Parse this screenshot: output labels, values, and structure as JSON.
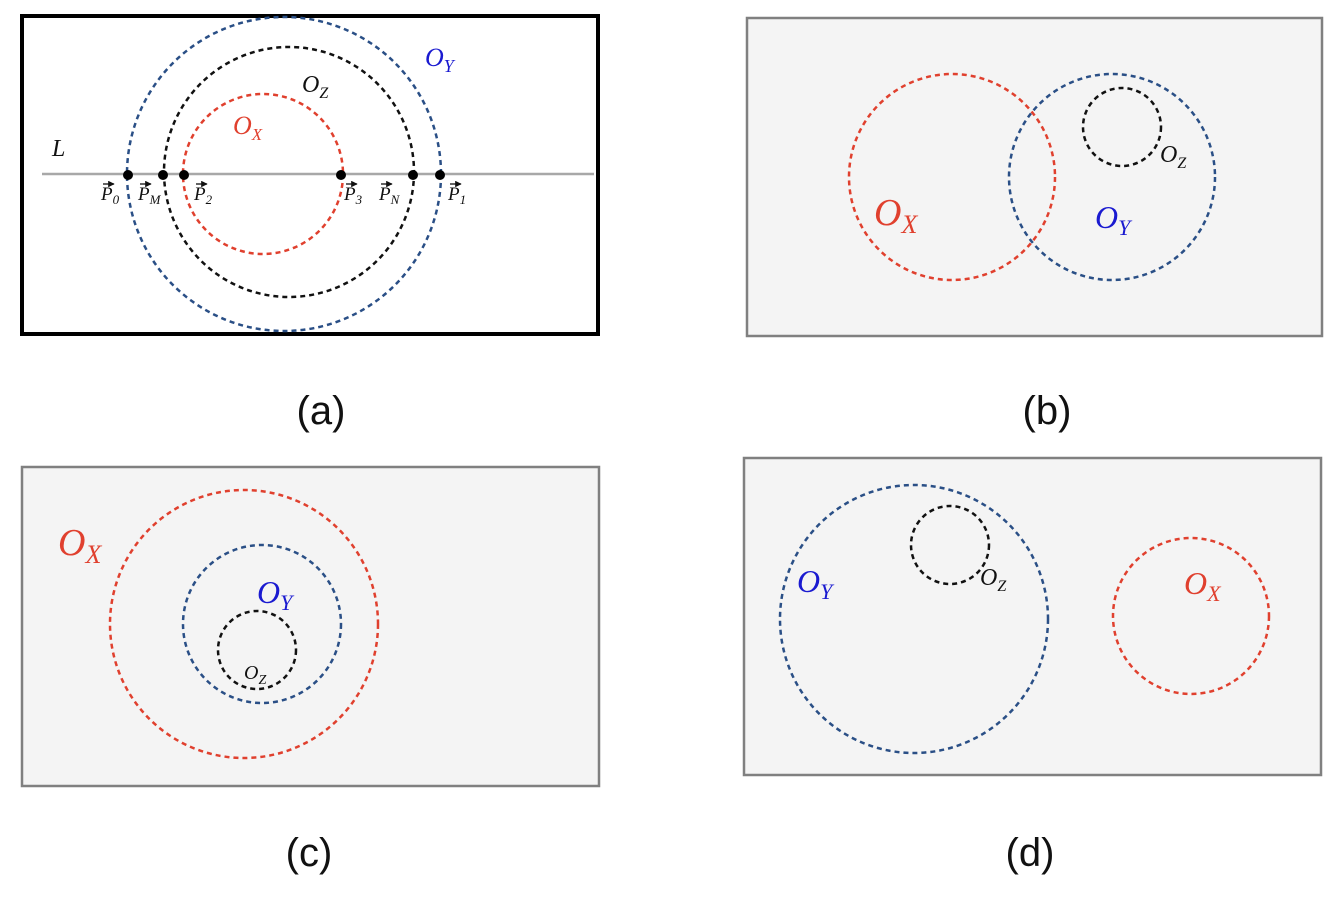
{
  "colors": {
    "red": "#e0402e",
    "blue": "#2a4f86",
    "black": "#111111",
    "label_blue": "#1a1ad0",
    "panel_fill": "#f4f4f4",
    "panel_border": "#808080",
    "line": "#a8a8a8"
  },
  "panels": [
    {
      "caption": "(a)",
      "line_label": "L",
      "circles": [
        {
          "id": "X",
          "letter": "O",
          "sub": "X",
          "color": "red"
        },
        {
          "id": "Y",
          "letter": "O",
          "sub": "Y",
          "color": "blue"
        },
        {
          "id": "Z",
          "letter": "O",
          "sub": "Z",
          "color": "black"
        }
      ],
      "points": [
        {
          "name": "P",
          "sub": "0"
        },
        {
          "name": "P",
          "sub": "M"
        },
        {
          "name": "P",
          "sub": "2"
        },
        {
          "name": "P",
          "sub": "3"
        },
        {
          "name": "P",
          "sub": "N"
        },
        {
          "name": "P",
          "sub": "1"
        }
      ]
    },
    {
      "caption": "(b)",
      "circles": [
        {
          "id": "X",
          "letter": "O",
          "sub": "X",
          "color": "red"
        },
        {
          "id": "Y",
          "letter": "O",
          "sub": "Y",
          "color": "blue"
        },
        {
          "id": "Z",
          "letter": "O",
          "sub": "Z",
          "color": "black"
        }
      ]
    },
    {
      "caption": "(c)",
      "circles": [
        {
          "id": "X",
          "letter": "O",
          "sub": "X",
          "color": "red"
        },
        {
          "id": "Y",
          "letter": "O",
          "sub": "Y",
          "color": "blue"
        },
        {
          "id": "Z",
          "letter": "O",
          "sub": "Z",
          "color": "black"
        }
      ]
    },
    {
      "caption": "(d)",
      "circles": [
        {
          "id": "Y",
          "letter": "O",
          "sub": "Y",
          "color": "blue"
        },
        {
          "id": "Z",
          "letter": "O",
          "sub": "Z",
          "color": "black"
        },
        {
          "id": "X",
          "letter": "O",
          "sub": "X",
          "color": "red"
        }
      ]
    }
  ]
}
